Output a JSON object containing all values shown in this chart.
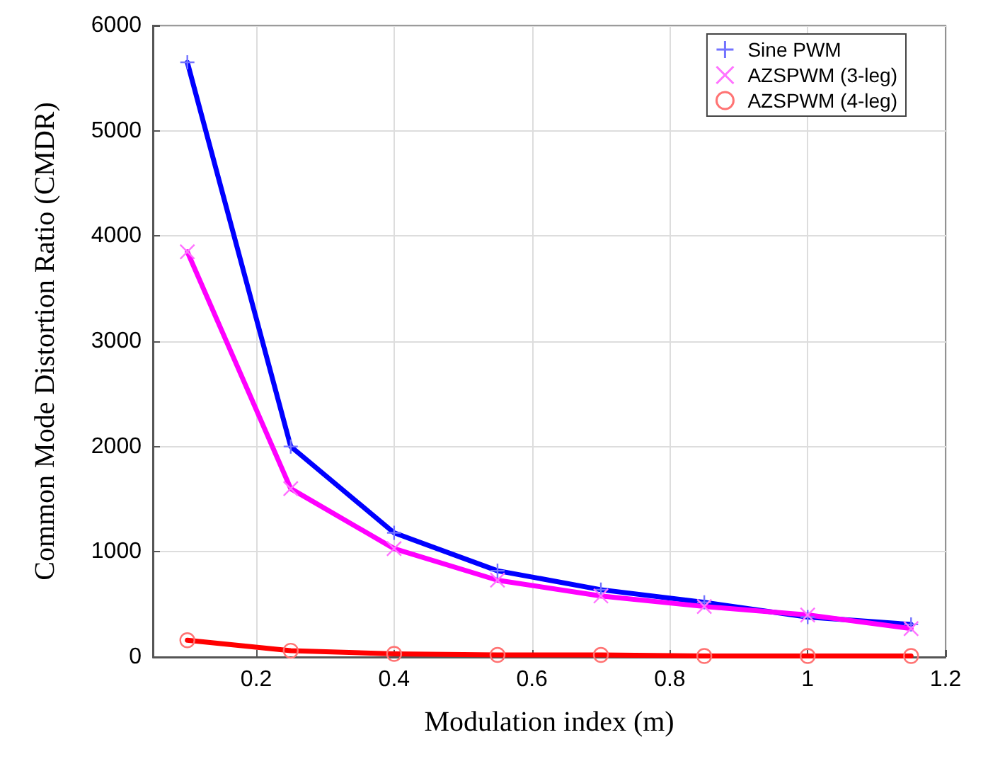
{
  "chart_data": {
    "type": "line",
    "xlabel": "Modulation index (m)",
    "ylabel": "Common Mode Distortion Ratio (CMDR)",
    "x": [
      0.1,
      0.25,
      0.4,
      0.55,
      0.7,
      0.85,
      1.0,
      1.15
    ],
    "series": [
      {
        "name": "Sine PWM",
        "color": "#0000ff",
        "marker": "plus",
        "values": [
          5650,
          2000,
          1180,
          820,
          640,
          520,
          380,
          310
        ]
      },
      {
        "name": "AZSPWM (3-leg)",
        "color": "#ff00ff",
        "marker": "cross",
        "values": [
          3850,
          1600,
          1030,
          730,
          580,
          480,
          400,
          270
        ]
      },
      {
        "name": "AZSPWM (4-leg)",
        "color": "#ff0000",
        "marker": "circle",
        "values": [
          160,
          60,
          30,
          20,
          20,
          10,
          10,
          10
        ]
      }
    ],
    "xlim": [
      0.05,
      1.2
    ],
    "xticks": [
      0.2,
      0.4,
      0.6,
      0.8,
      1,
      1.2
    ],
    "ylim": [
      0,
      6000
    ],
    "yticks": [
      0,
      1000,
      2000,
      3000,
      4000,
      5000,
      6000
    ],
    "grid": true,
    "legend": "top right",
    "line_style": "solid"
  }
}
